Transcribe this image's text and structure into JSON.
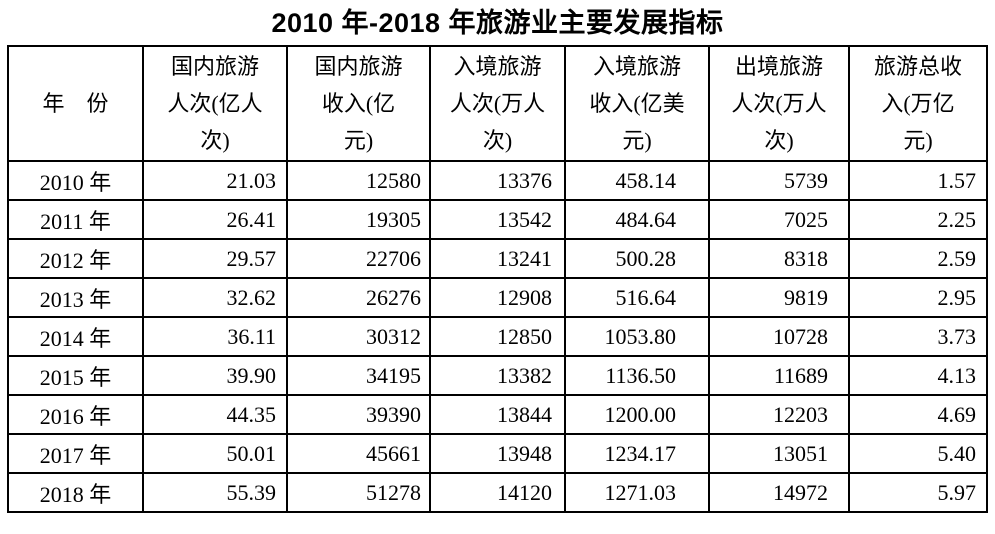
{
  "title": "2010 年-2018 年旅游业主要发展指标",
  "table": {
    "headers": [
      "年　份",
      "国内旅游\n人次(亿人\n次)",
      "国内旅游\n收入(亿\n元)",
      "入境旅游\n人次(万人\n次)",
      "入境旅游\n收入(亿美\n元)",
      "出境旅游\n人次(万人\n次)",
      "旅游总收\n入(万亿\n元)"
    ],
    "rows": [
      {
        "cells": [
          "2010 年",
          "21.03",
          "12580",
          "13376",
          "458.14",
          "5739",
          "1.57"
        ]
      },
      {
        "cells": [
          "2011 年",
          "26.41",
          "19305",
          "13542",
          "484.64",
          "7025",
          "2.25"
        ]
      },
      {
        "cells": [
          "2012 年",
          "29.57",
          "22706",
          "13241",
          "500.28",
          "8318",
          "2.59"
        ]
      },
      {
        "cells": [
          "2013 年",
          "32.62",
          "26276",
          "12908",
          "516.64",
          "9819",
          "2.95"
        ]
      },
      {
        "cells": [
          "2014 年",
          "36.11",
          "30312",
          "12850",
          "1053.80",
          "10728",
          "3.73"
        ]
      },
      {
        "cells": [
          "2015 年",
          "39.90",
          "34195",
          "13382",
          "1136.50",
          "11689",
          "4.13"
        ]
      },
      {
        "cells": [
          "2016 年",
          "44.35",
          "39390",
          "13844",
          "1200.00",
          "12203",
          "4.69"
        ]
      },
      {
        "cells": [
          "2017 年",
          "50.01",
          "45661",
          "13948",
          "1234.17",
          "13051",
          "5.40"
        ]
      },
      {
        "cells": [
          "2018 年",
          "55.39",
          "51278",
          "14120",
          "1271.03",
          "14972",
          "5.97"
        ]
      }
    ]
  },
  "chart_data": {
    "type": "table",
    "title": "2010 年-2018 年旅游业主要发展指标",
    "columns": [
      "年份",
      "国内旅游人次(亿人次)",
      "国内旅游收入(亿元)",
      "入境旅游人次(万人次)",
      "入境旅游收入(亿美元)",
      "出境旅游人次(万人次)",
      "旅游总收入(万亿元)"
    ],
    "rows": [
      [
        "2010年",
        21.03,
        12580,
        13376,
        458.14,
        5739,
        1.57
      ],
      [
        "2011年",
        26.41,
        19305,
        13542,
        484.64,
        7025,
        2.25
      ],
      [
        "2012年",
        29.57,
        22706,
        13241,
        500.28,
        8318,
        2.59
      ],
      [
        "2013年",
        32.62,
        26276,
        12908,
        516.64,
        9819,
        2.95
      ],
      [
        "2014年",
        36.11,
        30312,
        12850,
        1053.8,
        10728,
        3.73
      ],
      [
        "2015年",
        39.9,
        34195,
        13382,
        1136.5,
        11689,
        4.13
      ],
      [
        "2016年",
        44.35,
        39390,
        13844,
        1200.0,
        12203,
        4.69
      ],
      [
        "2017年",
        50.01,
        45661,
        13948,
        1234.17,
        13051,
        5.4
      ],
      [
        "2018年",
        55.39,
        51278,
        14120,
        1271.03,
        14972,
        5.97
      ]
    ],
    "colors": {
      "text": "#000000",
      "border": "#000000",
      "background": "#ffffff"
    }
  }
}
